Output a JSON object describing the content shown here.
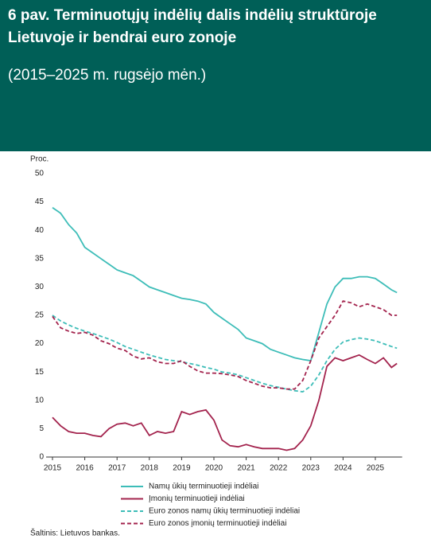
{
  "chart_data": {
    "type": "line",
    "title": "6 pav. Terminuotųjų indėlių dalis indėlių struktūroje Lietuvoje ir bendrai euro zonoje",
    "subtitle": "(2015–2025 m. rugsėjo mėn.)",
    "y_label": "Proc.",
    "source": "Šaltinis: Lietuvos bankas.",
    "x": [
      2015,
      2015.25,
      2015.5,
      2015.75,
      2016,
      2016.25,
      2016.5,
      2016.75,
      2017,
      2017.25,
      2017.5,
      2017.75,
      2018,
      2018.25,
      2018.5,
      2018.75,
      2019,
      2019.25,
      2019.5,
      2019.75,
      2020,
      2020.25,
      2020.5,
      2020.75,
      2021,
      2021.25,
      2021.5,
      2021.75,
      2022,
      2022.25,
      2022.5,
      2022.75,
      2023,
      2023.25,
      2023.5,
      2023.75,
      2024,
      2024.25,
      2024.5,
      2024.75,
      2025,
      2025.25,
      2025.5,
      2025.67
    ],
    "xlim": [
      2015,
      2025.83
    ],
    "xticks": [
      2015,
      2016,
      2017,
      2018,
      2019,
      2020,
      2021,
      2022,
      2023,
      2024,
      2025
    ],
    "ylim": [
      0,
      50
    ],
    "yticks": [
      0,
      5,
      10,
      15,
      20,
      25,
      30,
      35,
      40,
      45,
      50
    ],
    "series": [
      {
        "name": "Namų ūkių terminuotieji indėliai",
        "color": "#3dbdb8",
        "dashed": false,
        "values": [
          44,
          43,
          41,
          39.5,
          37,
          36,
          35,
          34,
          33,
          32.5,
          32,
          31,
          30,
          29.5,
          29,
          28.5,
          28,
          27.8,
          27.5,
          27,
          25.5,
          24.5,
          23.5,
          22.5,
          21,
          20.5,
          20,
          19,
          18.5,
          18,
          17.5,
          17.2,
          17,
          22,
          27,
          30,
          31.5,
          31.5,
          31.8,
          31.8,
          31.5,
          30.5,
          29.5,
          29
        ]
      },
      {
        "name": "Įmonių terminuotieji indėliai",
        "color": "#a3234d",
        "dashed": false,
        "values": [
          7,
          5.5,
          4.5,
          4.2,
          4.2,
          3.8,
          3.6,
          5,
          5.8,
          6,
          5.5,
          6,
          3.8,
          4.5,
          4.2,
          4.5,
          8,
          7.5,
          8,
          8.3,
          6.5,
          3,
          2,
          1.8,
          2.2,
          1.8,
          1.5,
          1.5,
          1.5,
          1.2,
          1.5,
          3,
          5.5,
          10,
          16,
          17.5,
          17,
          17.5,
          18,
          17.2,
          16.5,
          17.5,
          15.8,
          16.5
        ]
      },
      {
        "name": "Euro zonos namų ūkių terminuotieji indėliai",
        "color": "#3dbdb8",
        "dashed": true,
        "values": [
          25,
          24,
          23.3,
          22.7,
          22.2,
          21.8,
          21.3,
          20.8,
          20.2,
          19.5,
          19,
          18.5,
          18,
          17.6,
          17.2,
          17,
          16.8,
          16.5,
          16.2,
          15.8,
          15.5,
          15,
          14.8,
          14.5,
          14,
          13.5,
          13,
          12.6,
          12.3,
          12,
          11.7,
          11.5,
          12.5,
          14.5,
          17,
          19,
          20.3,
          20.7,
          21,
          20.8,
          20.5,
          20,
          19.5,
          19.2
        ]
      },
      {
        "name": "Euro zonos įmonių terminuotieji indėliai",
        "color": "#a3234d",
        "dashed": true,
        "values": [
          24.8,
          22.8,
          22.2,
          21.8,
          22,
          21.5,
          20.5,
          20,
          19.2,
          18.8,
          17.8,
          17.3,
          17.5,
          16.8,
          16.5,
          16.5,
          17,
          16,
          15.2,
          14.8,
          14.8,
          14.7,
          14.5,
          14.2,
          13.5,
          13,
          12.5,
          12.2,
          12.2,
          12,
          12,
          13.5,
          17,
          21,
          23,
          25,
          27.5,
          27.2,
          26.5,
          27,
          26.5,
          26,
          25,
          25
        ]
      }
    ]
  }
}
